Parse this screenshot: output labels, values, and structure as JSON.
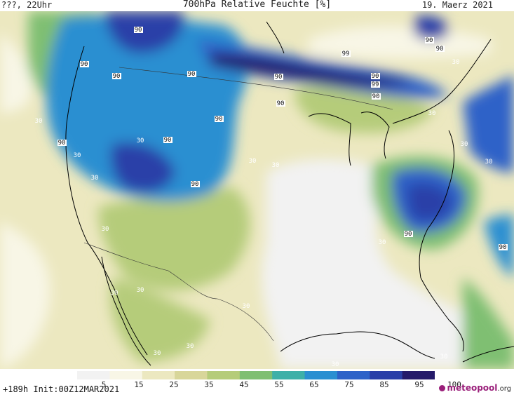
{
  "header": {
    "left": "???, 22Uhr",
    "center": "700hPa Relative Feuchte [%]",
    "right": "19. Maerz 2021"
  },
  "map_labels": [
    "90",
    "90",
    "90",
    "90",
    "90",
    "90",
    "90",
    "90",
    "90",
    "90",
    "90",
    "90",
    "90",
    "90",
    "90",
    "90",
    "99",
    "99",
    "30",
    "30",
    "30",
    "30",
    "30",
    "30",
    "30",
    "30",
    "30",
    "30",
    "30",
    "30",
    "30",
    "30",
    "30",
    "30",
    "30",
    "30",
    "30"
  ],
  "colorbar": {
    "ticks": [
      "5",
      "15",
      "25",
      "35",
      "45",
      "55",
      "65",
      "75",
      "85",
      "95",
      "100"
    ],
    "colors": [
      "#f2f2f2",
      "#f8f6e6",
      "#ece8c0",
      "#d8d69a",
      "#b5cc7a",
      "#7fbf72",
      "#3db0a8",
      "#2a8fd1",
      "#2d62c8",
      "#2a3fa8",
      "#251a6a"
    ]
  },
  "footer": {
    "run_info": "+189h Init:00Z12MAR2021",
    "logo_brand": "meteopool",
    "logo_domain": ".org"
  }
}
